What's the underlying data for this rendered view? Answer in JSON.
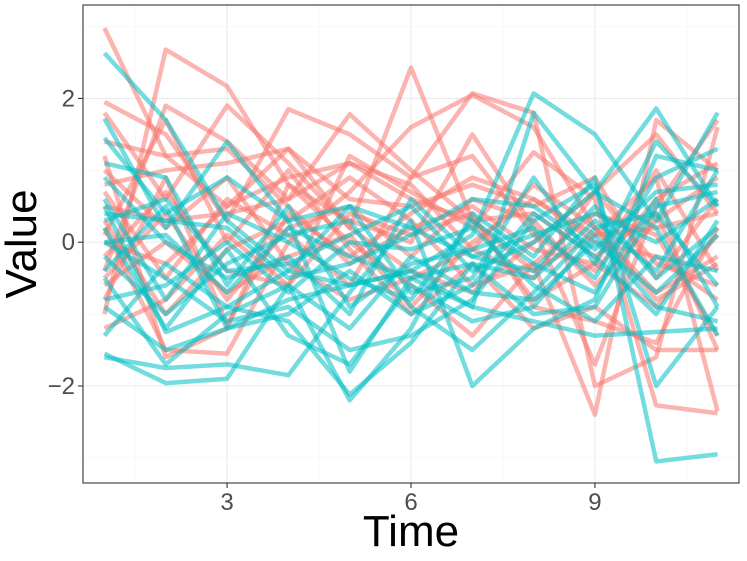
{
  "chart_data": {
    "type": "line",
    "title": "",
    "xlabel": "Time",
    "ylabel": "Value",
    "xlim": [
      0.65,
      11.35
    ],
    "ylim": [
      -3.35,
      3.3
    ],
    "x_ticks": [
      3,
      6,
      9
    ],
    "x_tick_labels": [
      "3",
      "6",
      "9"
    ],
    "y_ticks": [
      -2,
      0,
      2
    ],
    "y_tick_labels": [
      "−2",
      "0",
      "2"
    ],
    "grid": true,
    "legend": "none",
    "x": [
      1,
      2,
      3,
      4,
      5,
      6,
      7,
      8,
      9,
      10,
      11
    ],
    "groups": [
      {
        "color": "#F8766D",
        "series": [
          {
            "values": [
              2.98,
              1.2,
              0.5,
              0.9,
              1.1,
              0.6,
              0.3,
              0.4,
              -0.2,
              0.4,
              -1.5
            ]
          },
          {
            "values": [
              -1.0,
              2.68,
              2.17,
              0.8,
              0.0,
              -0.6,
              -1.3,
              -0.3,
              -2.4,
              1.7,
              1.0
            ]
          },
          {
            "values": [
              1.95,
              1.5,
              0.3,
              1.85,
              1.5,
              0.9,
              2.07,
              1.8,
              -2.0,
              -1.6,
              1.6
            ]
          },
          {
            "values": [
              1.8,
              0.6,
              1.9,
              1.1,
              0.2,
              2.43,
              0.3,
              -0.8,
              -0.3,
              1.0,
              -0.4
            ]
          },
          {
            "values": [
              -0.4,
              1.9,
              1.4,
              0.6,
              1.78,
              1.0,
              0.3,
              -0.4,
              0.1,
              0.9,
              -2.35
            ]
          },
          {
            "values": [
              0.8,
              1.0,
              1.1,
              1.3,
              0.6,
              0.5,
              0.8,
              0.5,
              0.9,
              -0.5,
              0.6
            ]
          },
          {
            "values": [
              0.2,
              -1.5,
              -1.55,
              0.0,
              0.7,
              1.6,
              2.05,
              1.6,
              0.2,
              -0.8,
              -0.3
            ]
          },
          {
            "values": [
              -0.8,
              0.9,
              -1.15,
              0.4,
              -0.2,
              0.4,
              0.9,
              0.6,
              0.1,
              0.2,
              0.4
            ]
          },
          {
            "values": [
              0.5,
              0.3,
              0.4,
              0.6,
              1.1,
              0.8,
              -0.1,
              -0.5,
              0.7,
              1.5,
              0.4
            ]
          },
          {
            "values": [
              -1.2,
              -0.8,
              0.1,
              -0.6,
              1.2,
              0.7,
              0.2,
              1.25,
              0.6,
              -2.27,
              -2.38
            ]
          },
          {
            "values": [
              1.4,
              1.2,
              1.3,
              0.5,
              -0.3,
              0.2,
              0.5,
              -0.1,
              -0.3,
              -0.9,
              0.1
            ]
          },
          {
            "values": [
              0.0,
              -0.3,
              0.5,
              1.3,
              0.2,
              -0.4,
              -0.7,
              0.0,
              0.7,
              -0.3,
              -0.6
            ]
          },
          {
            "values": [
              -0.5,
              0.4,
              -0.8,
              0.2,
              0.5,
              -0.2,
              0.6,
              0.3,
              -0.6,
              0.3,
              0.9
            ]
          },
          {
            "values": [
              1.0,
              0.2,
              0.9,
              -0.3,
              -0.8,
              -0.5,
              -0.1,
              0.8,
              0.2,
              -0.7,
              -0.2
            ]
          },
          {
            "values": [
              0.3,
              -1.0,
              -0.1,
              0.3,
              0.9,
              0.3,
              -0.6,
              -0.3,
              0.4,
              0.1,
              -1.3
            ]
          },
          {
            "values": [
              -0.2,
              0.7,
              -0.4,
              -0.6,
              0.4,
              0.1,
              0.4,
              -0.9,
              -1.1,
              -1.4,
              0.2
            ]
          },
          {
            "values": [
              0.7,
              -0.5,
              0.6,
              0.1,
              -0.6,
              0.9,
              1.2,
              0.1,
              -0.4,
              0.6,
              1.1
            ]
          },
          {
            "values": [
              -0.6,
              0.0,
              -0.7,
              -0.2,
              0.1,
              -0.9,
              0.0,
              0.6,
              0.0,
              -0.2,
              -0.8
            ]
          },
          {
            "values": [
              1.2,
              -1.6,
              -1.2,
              0.8,
              0.3,
              0.0,
              1.5,
              0.2,
              -1.7,
              0.5,
              1.7
            ]
          },
          {
            "values": [
              0.1,
              1.7,
              0.0,
              1.0,
              -0.1,
              -1.0,
              -0.3,
              -1.2,
              -0.9,
              -1.5,
              -1.5
            ]
          }
        ]
      },
      {
        "color": "#00BFC4",
        "series": [
          {
            "values": [
              2.63,
              1.7,
              0.3,
              -0.4,
              -0.6,
              -0.4,
              0.1,
              2.07,
              1.5,
              0.3,
              1.8
            ]
          },
          {
            "values": [
              1.72,
              0.2,
              1.4,
              0.3,
              -1.8,
              -0.5,
              -0.9,
              1.8,
              0.7,
              1.86,
              0.5
            ]
          },
          {
            "values": [
              -1.55,
              -1.96,
              -1.9,
              -0.6,
              -2.2,
              -1.2,
              0.4,
              -0.2,
              0.9,
              -3.05,
              -2.95
            ]
          },
          {
            "values": [
              0.0,
              -0.5,
              -1.1,
              -0.9,
              -1.5,
              -1.3,
              -0.8,
              0.3,
              0.8,
              -2.0,
              -0.9
            ]
          },
          {
            "values": [
              -1.6,
              -1.75,
              -1.7,
              -1.85,
              -0.7,
              0.3,
              -2.0,
              -1.2,
              -0.8,
              1.2,
              1.0
            ]
          },
          {
            "values": [
              0.5,
              -1.25,
              -0.9,
              -1.1,
              -2.12,
              -1.4,
              -0.3,
              -0.5,
              0.3,
              -0.4,
              1.0
            ]
          },
          {
            "values": [
              1.45,
              0.4,
              0.9,
              0.3,
              0.5,
              -0.7,
              -0.5,
              0.9,
              -0.3,
              1.4,
              0.5
            ]
          },
          {
            "values": [
              -0.4,
              0.5,
              -1.2,
              -0.8,
              -0.6,
              -0.4,
              -0.9,
              -1.1,
              -1.3,
              -1.25,
              -1.2
            ]
          },
          {
            "values": [
              0.9,
              0.0,
              -0.5,
              -0.2,
              -1.0,
              0.6,
              -0.2,
              -0.4,
              0.5,
              -0.5,
              0.2
            ]
          },
          {
            "values": [
              -0.2,
              -1.0,
              -0.3,
              0.1,
              0.3,
              -0.9,
              -1.5,
              -0.7,
              0.2,
              0.4,
              -0.6
            ]
          },
          {
            "values": [
              0.4,
              0.3,
              0.2,
              -0.5,
              -0.3,
              0.1,
              0.6,
              0.5,
              -0.1,
              0.7,
              0.8
            ]
          },
          {
            "values": [
              -0.8,
              -0.6,
              0.0,
              -0.7,
              0.0,
              -0.1,
              0.2,
              -0.6,
              -1.1,
              -0.2,
              -0.4
            ]
          },
          {
            "values": [
              1.1,
              0.9,
              -0.6,
              0.5,
              -0.9,
              -0.3,
              -0.1,
              0.2,
              -0.5,
              0.9,
              1.3
            ]
          },
          {
            "values": [
              0.2,
              -1.2,
              -0.1,
              -1.3,
              -1.7,
              -0.6,
              -1.1,
              -0.9,
              0.1,
              -0.9,
              -1.1
            ]
          },
          {
            "values": [
              -1.3,
              -0.3,
              -0.9,
              -0.4,
              0.5,
              0.2,
              -0.2,
              0.1,
              0.4,
              0.0,
              0.6
            ]
          },
          {
            "values": [
              0.6,
              -0.8,
              0.4,
              0.0,
              -0.5,
              -0.8,
              0.3,
              -0.3,
              -0.7,
              0.6,
              -0.9
            ]
          },
          {
            "values": [
              -0.9,
              -1.5,
              -1.2,
              -1.0,
              -0.4,
              -1.0,
              -0.6,
              0.4,
              -0.2,
              -1.0,
              0.3
            ]
          },
          {
            "values": [
              0.3,
              0.6,
              -0.4,
              -0.3,
              0.1,
              0.5,
              -0.4,
              0.0,
              0.7,
              0.2,
              -1.3
            ]
          },
          {
            "values": [
              -0.5,
              -1.7,
              -1.0,
              -0.6,
              -1.2,
              -0.2,
              -0.7,
              -0.8,
              0.0,
              -0.7,
              0.1
            ]
          },
          {
            "values": [
              0.0,
              0.1,
              -0.7,
              0.2,
              -0.2,
              -0.5,
              -0.3,
              -1.0,
              -0.9,
              0.5,
              0.7
            ]
          }
        ]
      }
    ]
  }
}
